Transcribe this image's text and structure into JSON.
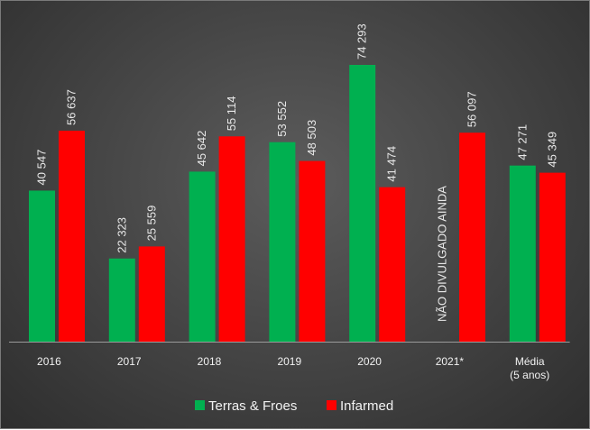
{
  "chart_data": {
    "type": "bar",
    "categories": [
      "2016",
      "2017",
      "2018",
      "2019",
      "2020",
      "2021*",
      [
        "Média",
        "(5 anos)"
      ]
    ],
    "series": [
      {
        "name": "Terras & Froes",
        "color": "#00b050",
        "values": [
          40547,
          22323,
          45642,
          53552,
          74293,
          null,
          47271
        ],
        "labels": [
          "40 547",
          "22 323",
          "45 642",
          "53 552",
          "74 293",
          null,
          "47 271"
        ]
      },
      {
        "name": "Infarmed",
        "color": "#ff0000",
        "values": [
          56637,
          25559,
          55114,
          48503,
          41474,
          56097,
          45349
        ],
        "labels": [
          "56 637",
          "25 559",
          "55 114",
          "48 503",
          "41 474",
          "56 097",
          "45 349"
        ]
      }
    ],
    "annotations": [
      {
        "category": "2021*",
        "series": "Terras & Froes",
        "text": "NÃO DIVULGADO AINDA"
      }
    ],
    "ylim": [
      0,
      74293
    ],
    "grid": false,
    "legend": "bottom"
  }
}
